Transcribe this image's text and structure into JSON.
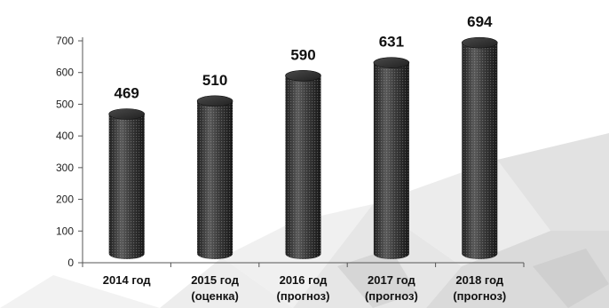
{
  "chart_data": {
    "type": "bar",
    "style": "3d-cylinder",
    "categories": [
      [
        "2014 год"
      ],
      [
        "2015 год",
        "(оценка)"
      ],
      [
        "2016 год",
        "(прогноз)"
      ],
      [
        "2017 год",
        "(прогноз)"
      ],
      [
        "2018 год",
        "(прогноз)"
      ]
    ],
    "values": [
      469,
      510,
      590,
      631,
      694
    ],
    "data_labels": [
      "469",
      "510",
      "590",
      "631",
      "694"
    ],
    "title": "",
    "xlabel": "",
    "ylabel": "",
    "ylim": [
      0,
      700
    ],
    "yticks": [
      0,
      100,
      200,
      300,
      400,
      500,
      600,
      700
    ],
    "grid": false,
    "legend": "none",
    "colors": {
      "bar_dark": "#2b2b2b",
      "bar_light": "#7a7a7a",
      "axis": "#555555",
      "background_pattern": "#dcdcdc"
    }
  }
}
